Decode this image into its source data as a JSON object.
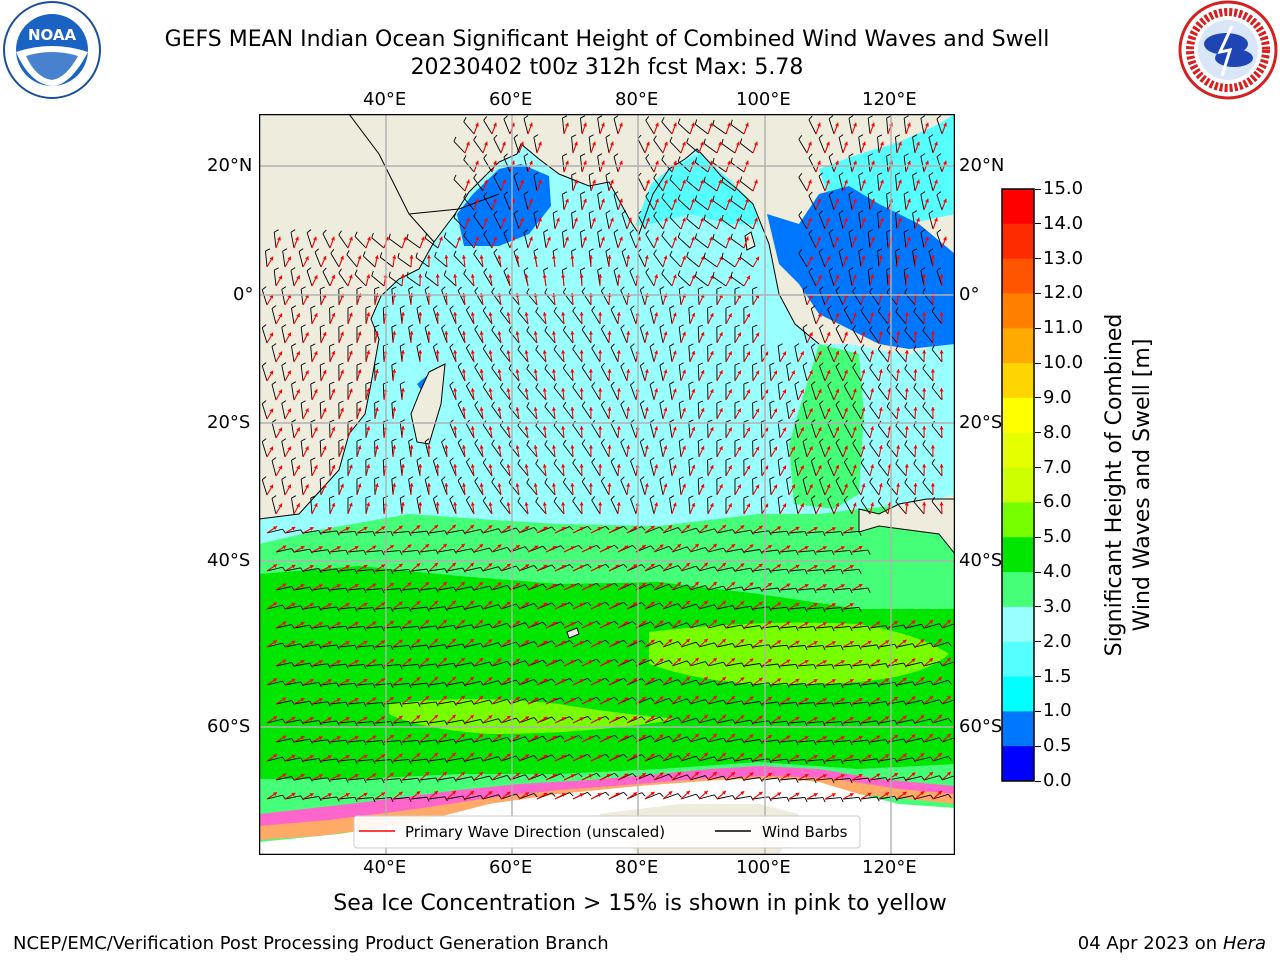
{
  "header": {
    "title_line1": "GEFS MEAN Indian Ocean Significant Height of Combined Wind Waves and Swell",
    "title_line2": "20230402 t00z 312h fcst   Max: 5.78"
  },
  "logos": {
    "left": {
      "text": "NOAA",
      "ring_text": "NATIONAL OCEANIC AND ATMOSPHERIC ADMINISTRATION · U.S. DEPARTMENT OF COMMERCE"
    },
    "right": {
      "ring_text": "NATIONAL WEATHER SERVICE"
    }
  },
  "map": {
    "lon_labels": [
      "40°E",
      "60°E",
      "80°E",
      "100°E",
      "120°E"
    ],
    "lat_labels": [
      "20°N",
      "0°",
      "20°S",
      "40°S",
      "60°S"
    ],
    "legend": {
      "primary_wave": "Primary Wave Direction (unscaled)",
      "wind_barbs": "Wind Barbs"
    },
    "colors": {
      "land": "#eeecdd",
      "wave_arrow": "#ff0000",
      "barb": "#000000"
    }
  },
  "colorbar": {
    "label_line1": "Significant Height of Combined",
    "label_line2": "Wind Waves and Swell [m]",
    "ticks": [
      "15.0",
      "14.0",
      "13.0",
      "12.0",
      "11.0",
      "10.0",
      "9.0",
      "8.0",
      "7.0",
      "6.0",
      "5.0",
      "4.0",
      "3.0",
      "2.0",
      "1.5",
      "1.0",
      "0.5",
      "0.0"
    ],
    "colors": [
      "#ff0000",
      "#ff2b00",
      "#ff5500",
      "#ff8000",
      "#ffaa00",
      "#ffd500",
      "#ffff00",
      "#e6ff00",
      "#ccff00",
      "#77ff00",
      "#00e600",
      "#44ff77",
      "#99ffff",
      "#55ffff",
      "#00ffff",
      "#0077ff",
      "#0000ff"
    ]
  },
  "notes": {
    "sea_ice": "Sea Ice Concentration > 15% is shown in pink to yellow",
    "credit": "NCEP/EMC/Verification Post Processing Product Generation Branch",
    "date_prefix": "04 Apr 2023 on ",
    "date_host": "Hera"
  }
}
